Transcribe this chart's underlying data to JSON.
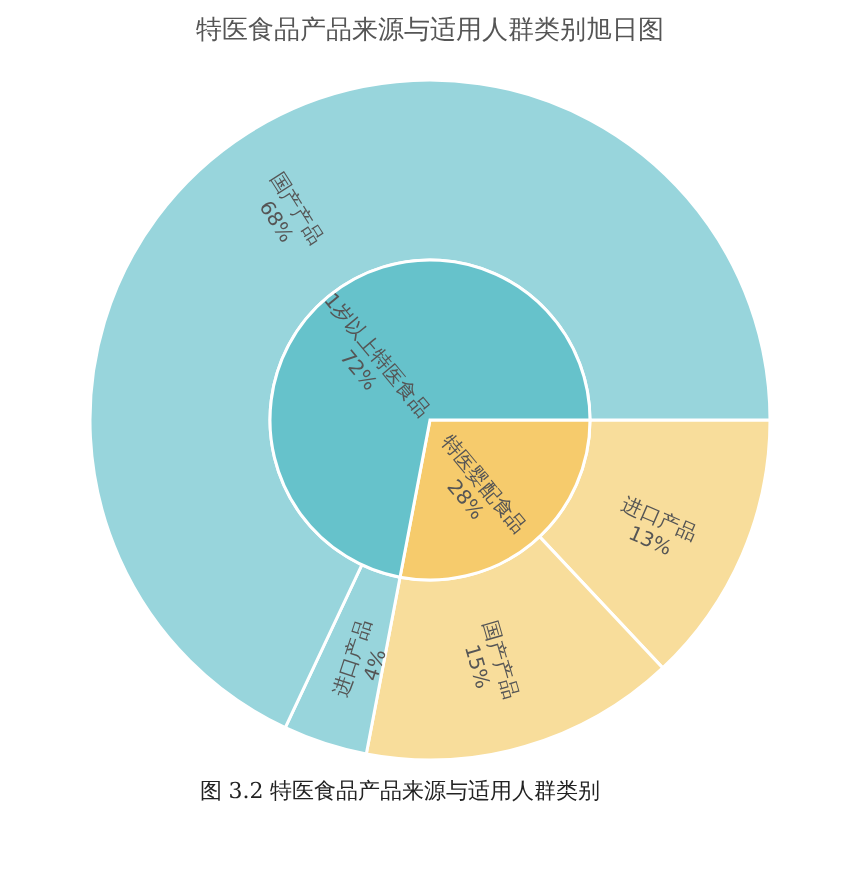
{
  "chart_data": [
    {
      "type": "pie",
      "title": "特医食品产品来源与适用人群类别旭日图",
      "categories": [
        "特医婴配食品",
        "1岁以上特医食品"
      ],
      "values": [
        28,
        72
      ],
      "colors": [
        "#f6cb6c",
        "#66c2cb"
      ],
      "value_labels": [
        "28%",
        "72%"
      ]
    },
    {
      "type": "donut",
      "categories": [
        "进口产品",
        "国产产品",
        "进口产品",
        "国产产品"
      ],
      "values": [
        13,
        15,
        4,
        68
      ],
      "colors": [
        "#f8dd9b",
        "#f8dd9b",
        "#98d5dc",
        "#98d5dc"
      ],
      "value_labels": [
        "13%",
        "15%",
        "4%",
        "68%"
      ],
      "annotations": [
        "图 3.2  特医食品产品来源与适用人群类别"
      ]
    }
  ]
}
